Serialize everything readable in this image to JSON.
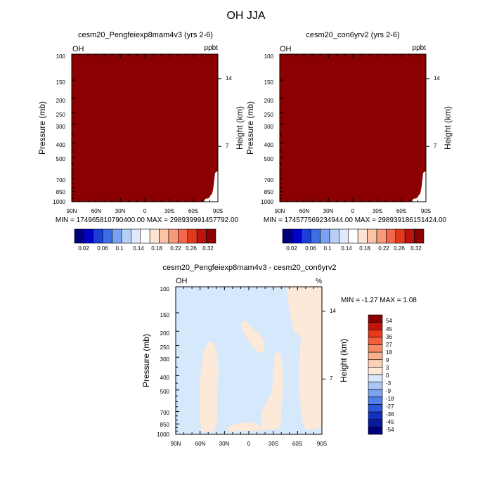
{
  "figure_title": "OH JJA",
  "colors": {
    "panel_fill": "#8b0000",
    "fig_background": "#ffffff",
    "diff_light_blue": "#d6e8fb",
    "diff_light_orange": "#fde9d8"
  },
  "chart_data": [
    {
      "type": "heatmap",
      "title": "cesm20_Pengfeiexp8mam4v3 (yrs 2-6)",
      "left_label": "OH",
      "right_label": "ppbt",
      "ylabel": "Pressure (mb)",
      "ylabel_right": "Height (km)",
      "x_ticks": [
        "90N",
        "60N",
        "30N",
        "0",
        "30S",
        "60S",
        "90S"
      ],
      "y_ticks": [
        "100",
        "150",
        "200",
        "250",
        "300",
        "400",
        "500",
        "700",
        "850",
        "1000"
      ],
      "y_right_ticks": [
        "14",
        "7"
      ],
      "stats": "MIN = 174965810790400.00   MAX = 298939991457792.00",
      "colorbar_labels": [
        "0.02",
        "0.06",
        "0.1",
        "0.14",
        "0.18",
        "0.22",
        "0.26",
        "0.32"
      ],
      "colorbar_colors": [
        "#00007f",
        "#0000c8",
        "#1b3fd9",
        "#3c6ee6",
        "#7aa3ef",
        "#b7cff7",
        "#deeafc",
        "#ffffff",
        "#fde3d2",
        "#fbc3a6",
        "#f89a78",
        "#f2684a",
        "#e0391f",
        "#b9150d",
        "#8b0000"
      ]
    },
    {
      "type": "heatmap",
      "title": "cesm20_con6yrv2 (yrs 2-6)",
      "left_label": "OH",
      "right_label": "ppbt",
      "ylabel": "Pressure (mb)",
      "ylabel_right": "Height (km)",
      "x_ticks": [
        "90N",
        "60N",
        "30N",
        "0",
        "30S",
        "60S",
        "90S"
      ],
      "y_ticks": [
        "100",
        "150",
        "200",
        "250",
        "300",
        "400",
        "500",
        "700",
        "850",
        "1000"
      ],
      "y_right_ticks": [
        "14",
        "7"
      ],
      "stats": "MIN = 174577569234944.00   MAX = 298939186151424.00",
      "colorbar_labels": [
        "0.02",
        "0.06",
        "0.1",
        "0.14",
        "0.18",
        "0.22",
        "0.26",
        "0.32"
      ],
      "colorbar_colors": [
        "#00007f",
        "#0000c8",
        "#1b3fd9",
        "#3c6ee6",
        "#7aa3ef",
        "#b7cff7",
        "#deeafc",
        "#ffffff",
        "#fde3d2",
        "#fbc3a6",
        "#f89a78",
        "#f2684a",
        "#e0391f",
        "#b9150d",
        "#8b0000"
      ]
    },
    {
      "type": "heatmap",
      "title": "cesm20_Pengfeiexp8mam4v3 - cesm20_con6yrv2",
      "left_label": "OH",
      "right_label": "%",
      "ylabel": "Pressure (mb)",
      "ylabel_right": "Height (km)",
      "x_ticks": [
        "90N",
        "60N",
        "30N",
        "0",
        "30S",
        "60S",
        "90S"
      ],
      "y_ticks": [
        "100",
        "150",
        "200",
        "250",
        "300",
        "400",
        "500",
        "700",
        "850",
        "1000"
      ],
      "y_right_ticks": [
        "14",
        "7"
      ],
      "stats": "MIN =  -1.27  MAX =   1.08",
      "colorbar_labels": [
        "54",
        "45",
        "36",
        "27",
        "18",
        "9",
        "3",
        "0",
        "-3",
        "-9",
        "-18",
        "-27",
        "-36",
        "-45",
        "-54"
      ],
      "colorbar_colors": [
        "#8b0000",
        "#c01508",
        "#e8381a",
        "#f35f3c",
        "#f78a64",
        "#faaf8e",
        "#fcd0b7",
        "#fde9d8",
        "#d6e8fb",
        "#a9c6f5",
        "#7aa3ef",
        "#4f7fe8",
        "#2b56dc",
        "#1530c0",
        "#0a1aa0",
        "#00007f"
      ]
    }
  ]
}
